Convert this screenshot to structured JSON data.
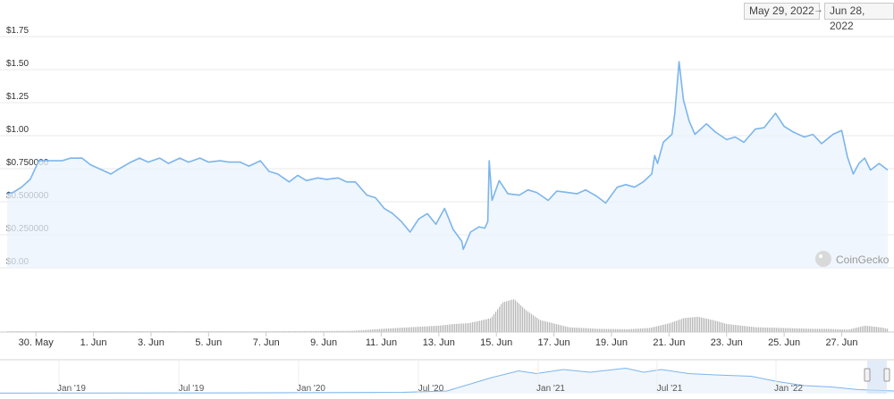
{
  "range": {
    "from": "May 29, 2022",
    "arrow": "→",
    "to": "Jun 28, 2022"
  },
  "watermark": {
    "text": "CoinGecko",
    "icon": "coingecko-gecko-icon"
  },
  "colors": {
    "line": "#7cb5ec",
    "fill": "#eaf3fc",
    "grid": "#e9e9e9",
    "volume": "#b8b8b8",
    "axis_text": "#333333"
  },
  "chart_data": {
    "type": "area",
    "title": "",
    "xlabel": "",
    "ylabel": "",
    "ylim": [
      0,
      1.75
    ],
    "y_ticks": [
      {
        "value": 1.75,
        "label": "$1.75"
      },
      {
        "value": 1.5,
        "label": "$1.50"
      },
      {
        "value": 1.25,
        "label": "$1.25"
      },
      {
        "value": 1.0,
        "label": "$1.00"
      },
      {
        "value": 0.75,
        "label": "$0.750000"
      },
      {
        "value": 0.5,
        "label": "$0.500000"
      },
      {
        "value": 0.25,
        "label": "$0.250000"
      },
      {
        "value": 0.0,
        "label": "$0.00"
      }
    ],
    "x_ticks": [
      {
        "day": 30,
        "label": "30. May"
      },
      {
        "day": 32,
        "label": "1. Jun"
      },
      {
        "day": 34,
        "label": "3. Jun"
      },
      {
        "day": 36,
        "label": "5. Jun"
      },
      {
        "day": 38,
        "label": "7. Jun"
      },
      {
        "day": 40,
        "label": "9. Jun"
      },
      {
        "day": 42,
        "label": "11. Jun"
      },
      {
        "day": 44,
        "label": "13. Jun"
      },
      {
        "day": 46,
        "label": "15. Jun"
      },
      {
        "day": 48,
        "label": "17. Jun"
      },
      {
        "day": 50,
        "label": "19. Jun"
      },
      {
        "day": 52,
        "label": "21. Jun"
      },
      {
        "day": 54,
        "label": "23. Jun"
      },
      {
        "day": 56,
        "label": "25. Jun"
      },
      {
        "day": 58,
        "label": "27. Jun"
      }
    ],
    "price": {
      "x": [
        29.0,
        29.2,
        29.5,
        29.8,
        30.1,
        30.5,
        30.9,
        31.2,
        31.6,
        31.9,
        32.2,
        32.6,
        32.9,
        33.3,
        33.6,
        33.9,
        34.3,
        34.6,
        35.0,
        35.3,
        35.7,
        36.0,
        36.4,
        36.7,
        37.1,
        37.4,
        37.8,
        38.1,
        38.4,
        38.8,
        39.1,
        39.4,
        39.8,
        40.1,
        40.5,
        40.8,
        41.1,
        41.5,
        41.8,
        42.1,
        42.4,
        42.7,
        43.0,
        43.3,
        43.6,
        43.9,
        44.2,
        44.5,
        44.8,
        44.85,
        45.1,
        45.4,
        45.6,
        45.7,
        45.75,
        45.85,
        46.1,
        46.4,
        46.8,
        47.1,
        47.4,
        47.8,
        48.1,
        48.5,
        48.8,
        49.1,
        49.5,
        49.8,
        50.2,
        50.5,
        50.8,
        51.1,
        51.4,
        51.5,
        51.6,
        51.8,
        52.1,
        52.2,
        52.35,
        52.5,
        52.7,
        52.9,
        53.3,
        53.6,
        54.0,
        54.3,
        54.6,
        55.0,
        55.3,
        55.7,
        56.0,
        56.3,
        56.7,
        57.0,
        57.3,
        57.7,
        58.0,
        58.2,
        58.4,
        58.6,
        58.8,
        59.0,
        59.3,
        59.6
      ],
      "y": [
        0.55,
        0.58,
        0.6,
        0.68,
        0.8,
        0.82,
        0.8,
        0.84,
        0.82,
        0.79,
        0.74,
        0.72,
        0.74,
        0.81,
        0.82,
        0.81,
        0.82,
        0.8,
        0.82,
        0.81,
        0.82,
        0.81,
        0.8,
        0.81,
        0.79,
        0.78,
        0.8,
        0.74,
        0.7,
        0.66,
        0.69,
        0.67,
        0.67,
        0.68,
        0.67,
        0.66,
        0.64,
        0.56,
        0.52,
        0.46,
        0.4,
        0.36,
        0.26,
        0.38,
        0.4,
        0.34,
        0.44,
        0.3,
        0.19,
        0.15,
        0.26,
        0.32,
        0.29,
        0.36,
        0.8,
        0.52,
        0.65,
        0.57,
        0.54,
        0.6,
        0.56,
        0.52,
        0.57,
        0.58,
        0.55,
        0.6,
        0.53,
        0.5,
        0.6,
        0.64,
        0.6,
        0.66,
        0.7,
        0.86,
        0.78,
        0.96,
        1.0,
        1.18,
        1.55,
        1.28,
        1.1,
        1.02,
        1.08,
        1.04,
        0.96,
        1.0,
        0.94,
        1.06,
        1.05,
        1.18,
        1.06,
        1.04,
        0.98,
        1.02,
        0.93,
        1.02,
        1.03,
        0.85,
        0.7,
        0.8,
        0.82,
        0.75,
        0.78,
        0.75
      ]
    },
    "volume": {
      "x": [
        29,
        33,
        38,
        41,
        42,
        43,
        43.5,
        44,
        44.5,
        45,
        45.4,
        45.8,
        46.2,
        46.6,
        47,
        47.5,
        48.5,
        49.5,
        50.5,
        51.3,
        52,
        52.5,
        53,
        53.5,
        54,
        55,
        56,
        57,
        57.5,
        58.2,
        58.8,
        59.3,
        59.6
      ],
      "y": [
        0.02,
        0.02,
        0.02,
        0.03,
        0.08,
        0.12,
        0.14,
        0.16,
        0.2,
        0.22,
        0.28,
        0.35,
        0.74,
        0.82,
        0.55,
        0.3,
        0.12,
        0.08,
        0.07,
        0.1,
        0.22,
        0.35,
        0.38,
        0.3,
        0.2,
        0.12,
        0.1,
        0.08,
        0.08,
        0.06,
        0.16,
        0.12,
        0.08
      ]
    },
    "navigator": {
      "ticks": [
        "Jan '19",
        "Jul '19",
        "Jan '20",
        "Jul '20",
        "Jan '21",
        "Jul '21",
        "Jan '22"
      ],
      "x": [
        0.0,
        0.25,
        0.45,
        0.5,
        0.52,
        0.55,
        0.58,
        0.6,
        0.63,
        0.66,
        0.7,
        0.72,
        0.74,
        0.77,
        0.8,
        0.84,
        0.87,
        0.9,
        0.93,
        0.96,
        1.0
      ],
      "y": [
        0.02,
        0.03,
        0.05,
        0.1,
        0.3,
        0.6,
        0.85,
        0.75,
        0.9,
        0.8,
        0.95,
        0.8,
        0.9,
        0.75,
        0.7,
        0.65,
        0.45,
        0.3,
        0.25,
        0.15,
        0.1
      ]
    }
  }
}
